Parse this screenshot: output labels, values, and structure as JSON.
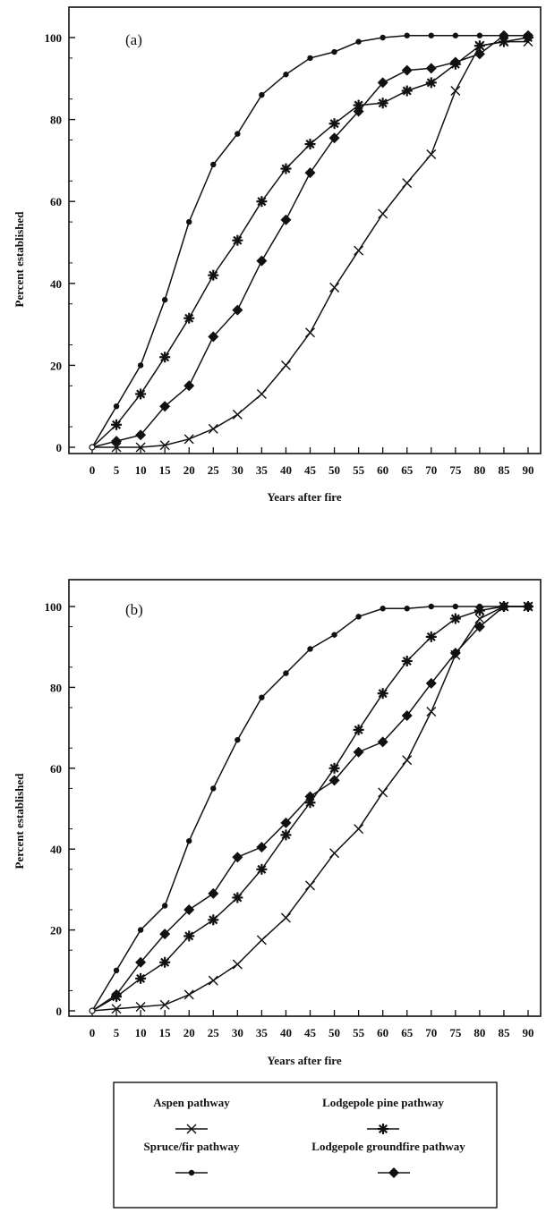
{
  "chart_data": [
    {
      "type": "line",
      "title": "(a)",
      "xlabel": "Years after fire",
      "ylabel": "Percent established",
      "xlim": [
        0,
        90
      ],
      "ylim": [
        0,
        100
      ],
      "x_ticks": [
        0,
        5,
        10,
        15,
        20,
        25,
        30,
        35,
        40,
        45,
        50,
        55,
        60,
        65,
        70,
        75,
        80,
        85,
        90
      ],
      "y_ticks": [
        0,
        20,
        40,
        60,
        80,
        100
      ],
      "series": [
        {
          "name": "Aspen pathway",
          "marker": "x",
          "x": [
            0,
            5,
            10,
            15,
            20,
            25,
            30,
            35,
            40,
            45,
            50,
            55,
            60,
            65,
            70,
            75,
            80,
            85,
            90
          ],
          "y": [
            0,
            0,
            0,
            0.5,
            2,
            4.5,
            8,
            13,
            20,
            28,
            39,
            48,
            57,
            64.5,
            71.5,
            87,
            98,
            99,
            99
          ]
        },
        {
          "name": "Lodgepole pine pathway",
          "marker": "star",
          "x": [
            0,
            5,
            10,
            15,
            20,
            25,
            30,
            35,
            40,
            45,
            50,
            55,
            60,
            65,
            70,
            75,
            80,
            85,
            90
          ],
          "y": [
            0,
            5.5,
            13,
            22,
            31.5,
            42,
            50.5,
            60,
            68,
            74,
            79,
            83.5,
            84,
            87,
            89,
            93.5,
            98,
            99,
            100
          ]
        },
        {
          "name": "Spruce/fir pathway",
          "marker": "dot",
          "x": [
            0,
            5,
            10,
            15,
            20,
            25,
            30,
            35,
            40,
            45,
            50,
            55,
            60,
            65,
            70,
            75,
            80,
            85,
            90
          ],
          "y": [
            0,
            10,
            20,
            36,
            55,
            69,
            76.5,
            86,
            91,
            95,
            96.5,
            99,
            100,
            100.5,
            100.5,
            100.5,
            100.5,
            100.5,
            100.5
          ]
        },
        {
          "name": "Lodgepole groundfire pathway",
          "marker": "diamond",
          "x": [
            0,
            5,
            10,
            15,
            20,
            25,
            30,
            35,
            40,
            45,
            50,
            55,
            60,
            65,
            70,
            75,
            80,
            85,
            90
          ],
          "y": [
            0,
            1.5,
            3,
            10,
            15,
            27,
            33.5,
            45.5,
            55.5,
            67,
            75.5,
            82,
            89,
            92,
            92.5,
            94,
            96,
            100.5,
            100.5
          ]
        }
      ]
    },
    {
      "type": "line",
      "title": "(b)",
      "xlabel": "Years after fire",
      "ylabel": "Percent established",
      "xlim": [
        0,
        90
      ],
      "ylim": [
        0,
        100
      ],
      "x_ticks": [
        0,
        5,
        10,
        15,
        20,
        25,
        30,
        35,
        40,
        45,
        50,
        55,
        60,
        65,
        70,
        75,
        80,
        85,
        90
      ],
      "y_ticks": [
        0,
        20,
        40,
        60,
        80,
        100
      ],
      "series": [
        {
          "name": "Aspen pathway",
          "marker": "x",
          "x": [
            0,
            5,
            10,
            15,
            20,
            25,
            30,
            35,
            40,
            45,
            50,
            55,
            60,
            65,
            70,
            75,
            80,
            85,
            90
          ],
          "y": [
            0,
            0.5,
            1,
            1.5,
            4,
            7.5,
            11.5,
            17.5,
            23,
            31,
            39,
            45,
            54,
            62,
            74,
            88,
            97,
            100,
            100
          ]
        },
        {
          "name": "Lodgepole pine pathway",
          "marker": "star",
          "x": [
            0,
            5,
            10,
            15,
            20,
            25,
            30,
            35,
            40,
            45,
            50,
            55,
            60,
            65,
            70,
            75,
            80,
            85,
            90
          ],
          "y": [
            0,
            3.5,
            8,
            12,
            18.5,
            22.5,
            28,
            35,
            43.5,
            51.5,
            60,
            69.5,
            78.5,
            86.5,
            92.5,
            97,
            99,
            100,
            100
          ]
        },
        {
          "name": "Spruce/fir pathway",
          "marker": "dot",
          "x": [
            0,
            5,
            10,
            15,
            20,
            25,
            30,
            35,
            40,
            45,
            50,
            55,
            60,
            65,
            70,
            75,
            80,
            85,
            90
          ],
          "y": [
            0,
            10,
            20,
            26,
            42,
            55,
            67,
            77.5,
            83.5,
            89.5,
            93,
            97.5,
            99.5,
            99.5,
            100,
            100,
            100,
            100,
            100
          ]
        },
        {
          "name": "Lodgepole groundfire pathway",
          "marker": "diamond",
          "x": [
            0,
            5,
            10,
            15,
            20,
            25,
            30,
            35,
            40,
            45,
            50,
            55,
            60,
            65,
            70,
            75,
            80,
            85,
            90
          ],
          "y": [
            0,
            4,
            12,
            19,
            25,
            29,
            38,
            40.5,
            46.5,
            53,
            57,
            64,
            66.5,
            73,
            81,
            88.5,
            95,
            100,
            100
          ]
        }
      ]
    }
  ],
  "legend": {
    "entries": [
      {
        "label": "Aspen pathway",
        "marker": "x"
      },
      {
        "label": "Lodgepole pine pathway",
        "marker": "star"
      },
      {
        "label": "Spruce/fir pathway",
        "marker": "dot"
      },
      {
        "label": "Lodgepole groundfire pathway",
        "marker": "diamond"
      }
    ]
  }
}
